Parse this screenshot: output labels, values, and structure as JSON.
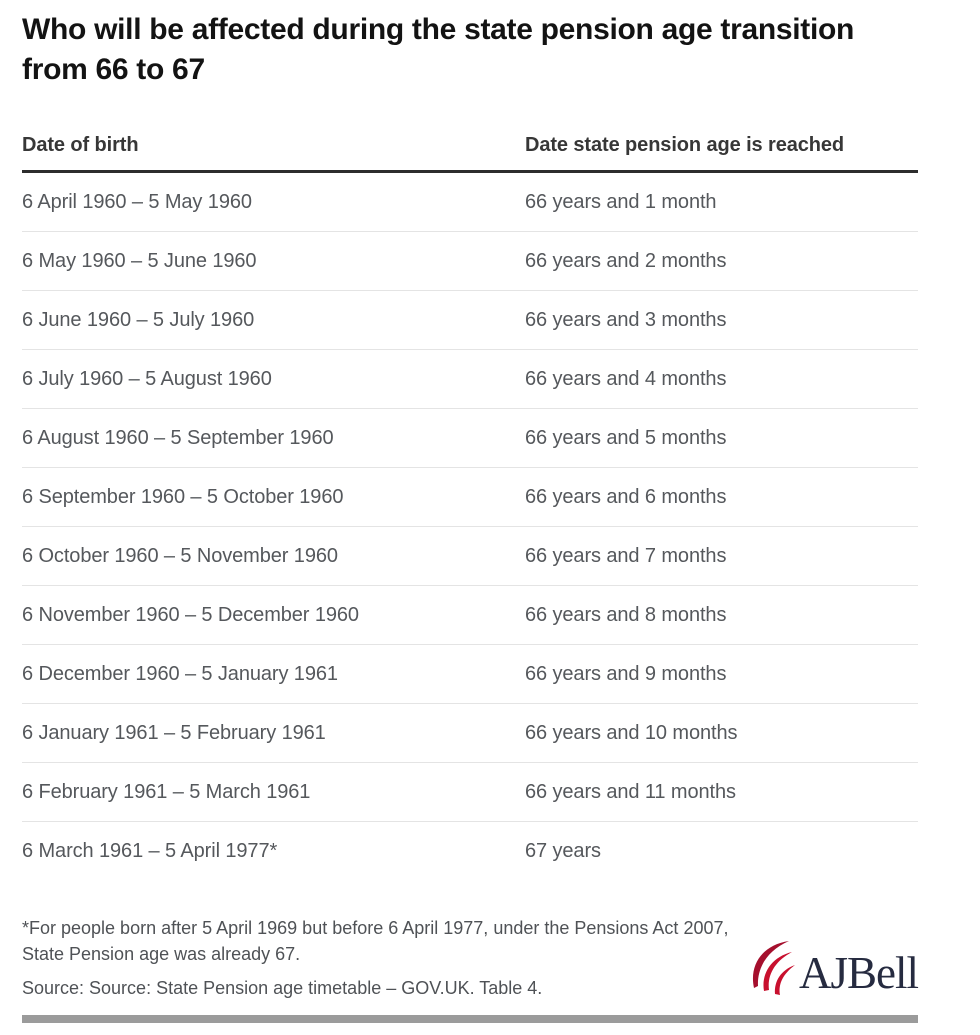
{
  "title": "Who will be affected during the state pension age transition from 66 to 67",
  "table": {
    "columns": [
      "Date of birth",
      "Date state pension age is reached"
    ],
    "rows": [
      {
        "dob": "6 April 1960 – 5 May 1960",
        "age": "66 years and 1 month"
      },
      {
        "dob": "6 May 1960 – 5 June 1960",
        "age": "66 years and 2 months"
      },
      {
        "dob": "6 June 1960 – 5 July 1960",
        "age": "66 years and 3 months"
      },
      {
        "dob": "6 July 1960 – 5 August 1960",
        "age": "66 years and 4 months"
      },
      {
        "dob": "6 August 1960 – 5 September 1960",
        "age": "66 years and 5 months"
      },
      {
        "dob": "6 September 1960 – 5 October 1960",
        "age": "66 years and 6 months"
      },
      {
        "dob": "6 October 1960 – 5 November 1960",
        "age": "66 years and 7 months"
      },
      {
        "dob": "6 November 1960 – 5 December 1960",
        "age": "66 years and 8 months"
      },
      {
        "dob": "6 December 1960 – 5 January 1961",
        "age": "66 years and 9 months"
      },
      {
        "dob": "6 January 1961 – 5 February 1961",
        "age": "66 years and 10 months"
      },
      {
        "dob": "6 February 1961 – 5 March 1961",
        "age": "66 years and 11 months"
      },
      {
        "dob": "6 March 1961 – 5 April 1977*",
        "age": "67 years"
      }
    ]
  },
  "footnote": "*For people born after 5 April 1969 but before 6 April 1977, under the Pensions Act 2007, State Pension age was already 67.",
  "source": "Source: Source: State Pension age timetable – GOV.UK. Table 4.",
  "logo": {
    "text": "AJBell",
    "icon": "ajbell-feather-icon"
  },
  "colors": {
    "brand_red": "#c8102e",
    "brand_red_dark": "#a50f2d",
    "brand_navy": "#262b40",
    "bottom_bar": "#9b9b9b"
  },
  "chart_data": {
    "type": "table",
    "title": "Who will be affected during the state pension age transition from 66 to 67",
    "columns": [
      "Date of birth",
      "Date state pension age is reached"
    ],
    "rows": [
      [
        "6 April 1960 – 5 May 1960",
        "66 years and 1 month"
      ],
      [
        "6 May 1960 – 5 June 1960",
        "66 years and 2 months"
      ],
      [
        "6 June 1960 – 5 July 1960",
        "66 years and 3 months"
      ],
      [
        "6 July 1960 – 5 August 1960",
        "66 years and 4 months"
      ],
      [
        "6 August 1960 – 5 September 1960",
        "66 years and 5 months"
      ],
      [
        "6 September 1960 – 5 October 1960",
        "66 years and 6 months"
      ],
      [
        "6 October 1960 – 5 November 1960",
        "66 years and 7 months"
      ],
      [
        "6 November 1960 – 5 December 1960",
        "66 years and 8 months"
      ],
      [
        "6 December 1960 – 5 January 1961",
        "66 years and 9 months"
      ],
      [
        "6 January 1961 – 5 February 1961",
        "66 years and 10 months"
      ],
      [
        "6 February 1961 – 5 March 1961",
        "66 years and 11 months"
      ],
      [
        "6 March 1961 – 5 April 1977*",
        "67 years"
      ]
    ],
    "footnote": "*For people born after 5 April 1969 but before 6 April 1977, under the Pensions Act 2007, State Pension age was already 67.",
    "source": "Source: Source: State Pension age timetable – GOV.UK. Table 4."
  }
}
